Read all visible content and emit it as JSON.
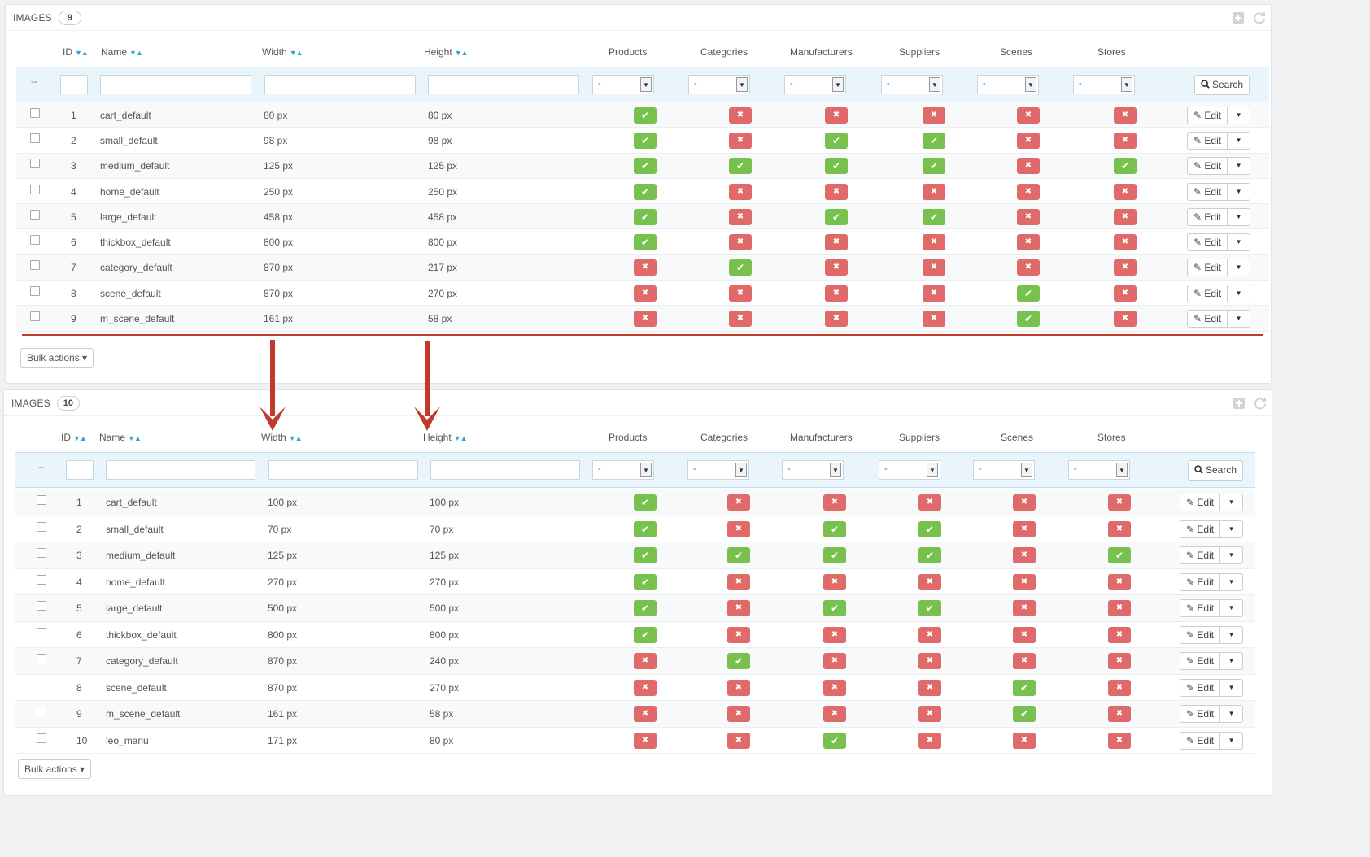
{
  "panels": [
    {
      "title": "IMAGES",
      "count": "9",
      "headers": {
        "id": "ID",
        "name": "Name",
        "width": "Width",
        "height": "Height",
        "products": "Products",
        "categories": "Categories",
        "manufacturers": "Manufacturers",
        "suppliers": "Suppliers",
        "scenes": "Scenes",
        "stores": "Stores"
      },
      "filters": {
        "dash": "--",
        "select_value": "-",
        "search_label": "Search"
      },
      "rows": [
        {
          "id": "1",
          "name": "cart_default",
          "width": "80 px",
          "height": "80 px",
          "flags": [
            1,
            0,
            0,
            0,
            0,
            0
          ]
        },
        {
          "id": "2",
          "name": "small_default",
          "width": "98 px",
          "height": "98 px",
          "flags": [
            1,
            0,
            1,
            1,
            0,
            0
          ]
        },
        {
          "id": "3",
          "name": "medium_default",
          "width": "125 px",
          "height": "125 px",
          "flags": [
            1,
            1,
            1,
            1,
            0,
            1
          ]
        },
        {
          "id": "4",
          "name": "home_default",
          "width": "250 px",
          "height": "250 px",
          "flags": [
            1,
            0,
            0,
            0,
            0,
            0
          ]
        },
        {
          "id": "5",
          "name": "large_default",
          "width": "458 px",
          "height": "458 px",
          "flags": [
            1,
            0,
            1,
            1,
            0,
            0
          ]
        },
        {
          "id": "6",
          "name": "thickbox_default",
          "width": "800 px",
          "height": "800 px",
          "flags": [
            1,
            0,
            0,
            0,
            0,
            0
          ]
        },
        {
          "id": "7",
          "name": "category_default",
          "width": "870 px",
          "height": "217 px",
          "flags": [
            0,
            1,
            0,
            0,
            0,
            0
          ]
        },
        {
          "id": "8",
          "name": "scene_default",
          "width": "870 px",
          "height": "270 px",
          "flags": [
            0,
            0,
            0,
            0,
            1,
            0
          ]
        },
        {
          "id": "9",
          "name": "m_scene_default",
          "width": "161 px",
          "height": "58 px",
          "flags": [
            0,
            0,
            0,
            0,
            1,
            0
          ]
        }
      ],
      "edit_label": "Edit",
      "bulk_label": "Bulk actions"
    },
    {
      "title": "IMAGES",
      "count": "10",
      "headers": {
        "id": "ID",
        "name": "Name",
        "width": "Width",
        "height": "Height",
        "products": "Products",
        "categories": "Categories",
        "manufacturers": "Manufacturers",
        "suppliers": "Suppliers",
        "scenes": "Scenes",
        "stores": "Stores"
      },
      "filters": {
        "dash": "--",
        "select_value": "-",
        "search_label": "Search"
      },
      "rows": [
        {
          "id": "1",
          "name": "cart_default",
          "width": "100 px",
          "height": "100 px",
          "flags": [
            1,
            0,
            0,
            0,
            0,
            0
          ]
        },
        {
          "id": "2",
          "name": "small_default",
          "width": "70 px",
          "height": "70 px",
          "flags": [
            1,
            0,
            1,
            1,
            0,
            0
          ]
        },
        {
          "id": "3",
          "name": "medium_default",
          "width": "125 px",
          "height": "125 px",
          "flags": [
            1,
            1,
            1,
            1,
            0,
            1
          ]
        },
        {
          "id": "4",
          "name": "home_default",
          "width": "270 px",
          "height": "270 px",
          "flags": [
            1,
            0,
            0,
            0,
            0,
            0
          ]
        },
        {
          "id": "5",
          "name": "large_default",
          "width": "500 px",
          "height": "500 px",
          "flags": [
            1,
            0,
            1,
            1,
            0,
            0
          ]
        },
        {
          "id": "6",
          "name": "thickbox_default",
          "width": "800 px",
          "height": "800 px",
          "flags": [
            1,
            0,
            0,
            0,
            0,
            0
          ]
        },
        {
          "id": "7",
          "name": "category_default",
          "width": "870 px",
          "height": "240 px",
          "flags": [
            0,
            1,
            0,
            0,
            0,
            0
          ]
        },
        {
          "id": "8",
          "name": "scene_default",
          "width": "870 px",
          "height": "270 px",
          "flags": [
            0,
            0,
            0,
            0,
            1,
            0
          ]
        },
        {
          "id": "9",
          "name": "m_scene_default",
          "width": "161 px",
          "height": "58 px",
          "flags": [
            0,
            0,
            0,
            0,
            1,
            0
          ]
        },
        {
          "id": "10",
          "name": "leo_manu",
          "width": "171 px",
          "height": "80 px",
          "flags": [
            0,
            0,
            1,
            0,
            0,
            0
          ]
        }
      ],
      "edit_label": "Edit",
      "bulk_label": "Bulk actions"
    }
  ],
  "colors": {
    "enabled": "#78c14e",
    "disabled": "#e06a6a",
    "accent": "#2aa7d8",
    "annotation": "#c0392b"
  },
  "icons": {
    "check": "check-icon",
    "cross": "cross-icon",
    "pencil": "pencil-icon",
    "search": "search-icon",
    "caret": "caret-down-icon",
    "add": "add-icon",
    "refresh": "refresh-icon"
  }
}
